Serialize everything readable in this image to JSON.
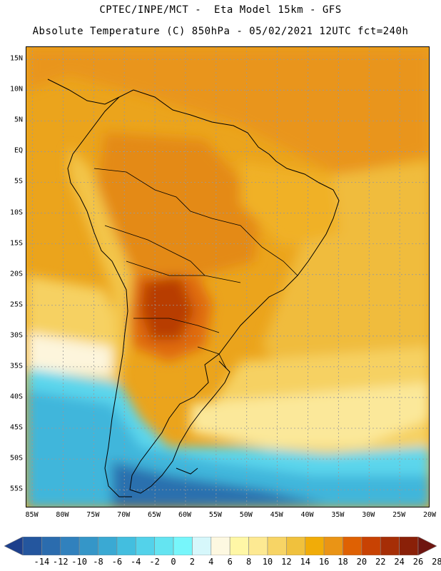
{
  "header": {
    "title_line1": "CPTEC/INPE/MCT -  Eta Model 15km - GFS",
    "title_line2": "Absolute Temperature (C) 850hPa - 05/02/2021 12UTC fct=240h"
  },
  "axes": {
    "lat_labels": [
      "15N",
      "10N",
      "5N",
      "EQ",
      "5S",
      "10S",
      "15S",
      "20S",
      "25S",
      "30S",
      "35S",
      "40S",
      "45S",
      "50S",
      "55S"
    ],
    "lat_values": [
      15,
      10,
      5,
      0,
      -5,
      -10,
      -15,
      -20,
      -25,
      -30,
      -35,
      -40,
      -45,
      -50,
      -55
    ],
    "lon_labels": [
      "85W",
      "80W",
      "75W",
      "70W",
      "65W",
      "60W",
      "55W",
      "50W",
      "45W",
      "40W",
      "35W",
      "30W",
      "25W",
      "20W"
    ],
    "lon_values": [
      -85,
      -80,
      -75,
      -70,
      -65,
      -60,
      -55,
      -50,
      -45,
      -40,
      -35,
      -30,
      -25,
      -20
    ],
    "lon_range": [
      -86,
      -20
    ],
    "lat_range": [
      -58,
      17
    ]
  },
  "colorbar": {
    "labels": [
      "-14",
      "-12",
      "-10",
      "-8",
      "-6",
      "-4",
      "-2",
      "0",
      "2",
      "4",
      "6",
      "8",
      "10",
      "12",
      "14",
      "16",
      "18",
      "20",
      "22",
      "24",
      "26",
      "28"
    ],
    "colors": [
      "#1d3f8c",
      "#24569e",
      "#2b6cae",
      "#3181bd",
      "#3596c8",
      "#3aa9d3",
      "#43bedf",
      "#53d2ea",
      "#64e4f1",
      "#77f6fb",
      "#d6f7fb",
      "#fdf8e1",
      "#fff7a6",
      "#fde992",
      "#f7d465",
      "#f0c13d",
      "#f1ac08",
      "#ea9415",
      "#df6103",
      "#c84203",
      "#a62e06",
      "#8a2008",
      "#6e1510"
    ],
    "units": "C"
  }
}
